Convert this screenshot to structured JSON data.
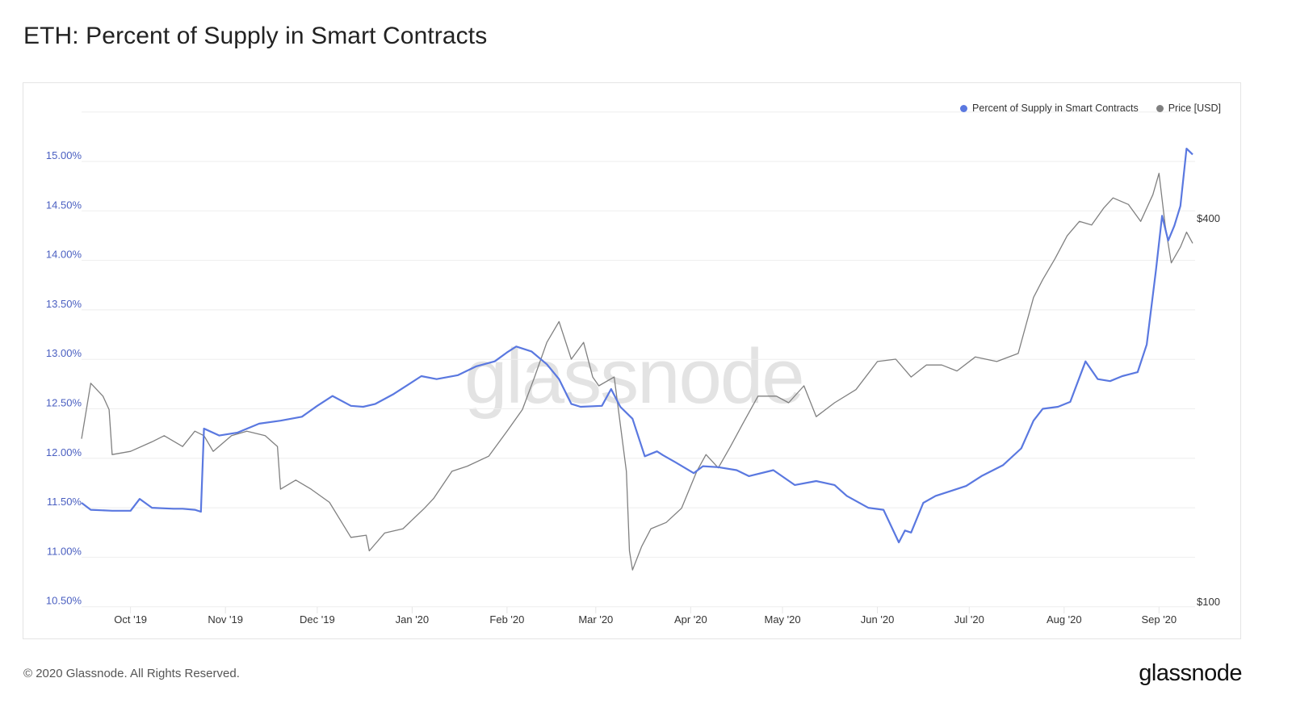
{
  "header": {
    "title": "ETH: Percent of Supply in Smart Contracts"
  },
  "legend": {
    "items": [
      {
        "label": "Percent of Supply in Smart Contracts",
        "color": "#5a78e0"
      },
      {
        "label": "Price [USD]",
        "color": "#808080"
      }
    ]
  },
  "watermark": "glassnode",
  "footer": {
    "copyright": "© 2020 Glassnode. All Rights Reserved.",
    "logo": "glassnode"
  },
  "chart_data": {
    "type": "line",
    "title": "ETH: Percent of Supply in Smart Contracts",
    "xlabel": "",
    "ylabel": "Percent of Supply in Smart Contracts",
    "ylabel_right": "Price [USD]",
    "grid": true,
    "legend_position": "top-right",
    "y_left": {
      "ticks": [
        "10.50%",
        "11.00%",
        "11.50%",
        "12.00%",
        "12.50%",
        "13.00%",
        "13.50%",
        "14.00%",
        "14.50%",
        "15.00%"
      ],
      "range": [
        10.5,
        15.5
      ],
      "color": "#4a5fc1"
    },
    "y_right": {
      "scale": "log",
      "ticks": [
        "$100",
        "$400"
      ],
      "range": [
        100,
        1000
      ]
    },
    "x_ticks": [
      "Oct '19",
      "Nov '19",
      "Dec '19",
      "Jan '20",
      "Feb '20",
      "Mar '20",
      "Apr '20",
      "May '20",
      "Jun '20",
      "Jul '20",
      "Aug '20",
      "Sep '20"
    ],
    "x_range": [
      "2019-09-15",
      "2020-09-12"
    ],
    "series": [
      {
        "name": "Percent of Supply in Smart Contracts",
        "axis": "left",
        "color": "#5a78e0",
        "x": [
          "2019-09-15",
          "2019-09-18",
          "2019-09-25",
          "2019-10-01",
          "2019-10-04",
          "2019-10-08",
          "2019-10-15",
          "2019-10-18",
          "2019-10-22",
          "2019-10-24",
          "2019-10-25",
          "2019-10-30",
          "2019-11-05",
          "2019-11-12",
          "2019-11-19",
          "2019-11-26",
          "2019-12-01",
          "2019-12-06",
          "2019-12-12",
          "2019-12-16",
          "2019-12-20",
          "2019-12-26",
          "2020-01-04",
          "2020-01-09",
          "2020-01-16",
          "2020-01-22",
          "2020-01-28",
          "2020-02-01",
          "2020-02-04",
          "2020-02-09",
          "2020-02-14",
          "2020-02-18",
          "2020-02-22",
          "2020-02-25",
          "2020-03-03",
          "2020-03-06",
          "2020-03-09",
          "2020-03-13",
          "2020-03-17",
          "2020-03-21",
          "2020-03-23",
          "2020-03-27",
          "2020-04-02",
          "2020-04-05",
          "2020-04-10",
          "2020-04-16",
          "2020-04-20",
          "2020-04-28",
          "2020-05-05",
          "2020-05-12",
          "2020-05-18",
          "2020-05-22",
          "2020-05-29",
          "2020-06-03",
          "2020-06-08",
          "2020-06-10",
          "2020-06-12",
          "2020-06-16",
          "2020-06-20",
          "2020-06-25",
          "2020-06-30",
          "2020-07-05",
          "2020-07-12",
          "2020-07-18",
          "2020-07-22",
          "2020-07-25",
          "2020-07-30",
          "2020-08-03",
          "2020-08-08",
          "2020-08-12",
          "2020-08-16",
          "2020-08-20",
          "2020-08-25",
          "2020-08-28",
          "2020-08-31",
          "2020-09-02",
          "2020-09-04",
          "2020-09-06",
          "2020-09-08",
          "2020-09-10",
          "2020-09-12"
        ],
        "values": [
          11.55,
          11.48,
          11.47,
          11.47,
          11.59,
          11.5,
          11.49,
          11.49,
          11.48,
          11.46,
          12.3,
          12.23,
          12.26,
          12.35,
          12.38,
          12.42,
          12.53,
          12.63,
          12.53,
          12.52,
          12.55,
          12.65,
          12.83,
          12.8,
          12.84,
          12.93,
          12.98,
          13.07,
          13.13,
          13.08,
          12.95,
          12.8,
          12.55,
          12.52,
          12.53,
          12.7,
          12.52,
          12.4,
          12.02,
          12.07,
          12.03,
          11.96,
          11.85,
          11.92,
          11.91,
          11.88,
          11.82,
          11.88,
          11.73,
          11.77,
          11.73,
          11.62,
          11.5,
          11.48,
          11.15,
          11.27,
          11.25,
          11.55,
          11.62,
          11.67,
          11.72,
          11.82,
          11.93,
          12.1,
          12.38,
          12.5,
          12.52,
          12.57,
          12.98,
          12.8,
          12.78,
          12.83,
          12.87,
          13.15,
          13.9,
          14.45,
          14.2,
          14.35,
          14.55,
          15.13,
          15.07
        ]
      },
      {
        "name": "Price [USD]",
        "axis": "right",
        "color": "#808080",
        "x": [
          "2019-09-15",
          "2019-09-18",
          "2019-09-22",
          "2019-09-24",
          "2019-09-25",
          "2019-10-01",
          "2019-10-08",
          "2019-10-12",
          "2019-10-18",
          "2019-10-22",
          "2019-10-25",
          "2019-10-28",
          "2019-11-03",
          "2019-11-08",
          "2019-11-14",
          "2019-11-18",
          "2019-11-19",
          "2019-11-24",
          "2019-11-29",
          "2019-12-05",
          "2019-12-12",
          "2019-12-17",
          "2019-12-18",
          "2019-12-23",
          "2019-12-29",
          "2020-01-05",
          "2020-01-08",
          "2020-01-14",
          "2020-01-19",
          "2020-01-26",
          "2020-02-01",
          "2020-02-06",
          "2020-02-10",
          "2020-02-14",
          "2020-02-18",
          "2020-02-22",
          "2020-02-26",
          "2020-02-29",
          "2020-03-02",
          "2020-03-07",
          "2020-03-11",
          "2020-03-12",
          "2020-03-13",
          "2020-03-16",
          "2020-03-19",
          "2020-03-24",
          "2020-03-29",
          "2020-04-03",
          "2020-04-06",
          "2020-04-10",
          "2020-04-14",
          "2020-04-18",
          "2020-04-23",
          "2020-04-29",
          "2020-05-03",
          "2020-05-08",
          "2020-05-12",
          "2020-05-18",
          "2020-05-25",
          "2020-06-01",
          "2020-06-07",
          "2020-06-12",
          "2020-06-17",
          "2020-06-22",
          "2020-06-27",
          "2020-07-03",
          "2020-07-10",
          "2020-07-17",
          "2020-07-22",
          "2020-07-25",
          "2020-07-29",
          "2020-08-02",
          "2020-08-06",
          "2020-08-10",
          "2020-08-14",
          "2020-08-17",
          "2020-08-22",
          "2020-08-26",
          "2020-08-30",
          "2020-09-01",
          "2020-09-03",
          "2020-09-05",
          "2020-09-08",
          "2020-09-10",
          "2020-09-12"
        ],
        "values": [
          180,
          220,
          210,
          200,
          170,
          172,
          178,
          182,
          175,
          185,
          182,
          172,
          182,
          185,
          182,
          175,
          150,
          155,
          150,
          143,
          126,
          127,
          120,
          128,
          130,
          140,
          145,
          160,
          163,
          169,
          185,
          200,
          225,
          255,
          275,
          240,
          255,
          225,
          218,
          225,
          160,
          120,
          112,
          122,
          130,
          133,
          140,
          160,
          170,
          162,
          175,
          190,
          210,
          210,
          205,
          218,
          195,
          205,
          215,
          238,
          240,
          225,
          235,
          235,
          230,
          242,
          238,
          245,
          300,
          320,
          345,
          375,
          395,
          390,
          415,
          430,
          420,
          395,
          435,
          470,
          390,
          340,
          360,
          380,
          365
        ]
      }
    ]
  }
}
